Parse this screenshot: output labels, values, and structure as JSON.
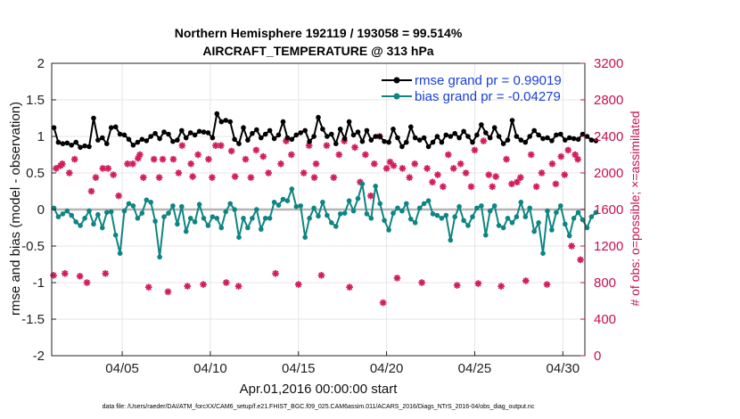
{
  "chart_data": {
    "type": "line",
    "title_line1": "Northern Hemisphere 192119 / 193058 = 99.514%",
    "title_line2": "AIRCRAFT_TEMPERATURE @ 313 hPa",
    "ylabel_left": "rmse and bias (model - observation)",
    "ylabel_right": "# of obs: o=possible; ×=assimilated",
    "xlabel": "Apr.01,2016 00:00:00 start",
    "footnote": "data file: /Users/raeder/DAI/ATM_forcXX/CAM6_setup/f.e21.FHIST_BGC.f09_025.CAM6assim.011/ACARS_2016/Diags_NTrS_2016-04/obs_diag_output.nc",
    "xlim": [
      1.0,
      31.25
    ],
    "ylim_left": [
      -2,
      2
    ],
    "ylim_right": [
      0,
      3200
    ],
    "xticks": [
      {
        "x": 5,
        "label": "04/05"
      },
      {
        "x": 10,
        "label": "04/10"
      },
      {
        "x": 15,
        "label": "04/15"
      },
      {
        "x": 20,
        "label": "04/20"
      },
      {
        "x": 25,
        "label": "04/25"
      },
      {
        "x": 30,
        "label": "04/30"
      }
    ],
    "yticks_left": [
      "2",
      "1.5",
      "1",
      "0.5",
      "0",
      "-0.5",
      "-1",
      "-1.5",
      "-2"
    ],
    "yticks_right": [
      "3200",
      "2800",
      "2400",
      "2000",
      "1600",
      "1200",
      "800",
      "400",
      "0"
    ],
    "x_start": 1.125,
    "x_step": 0.25,
    "series": [
      {
        "name": "rmse",
        "legend": "rmse grand pr = 0.99019",
        "color": "#000000",
        "axis": "left",
        "values": [
          1.12,
          0.92,
          0.9,
          0.91,
          0.88,
          0.92,
          0.85,
          0.87,
          0.86,
          1.25,
          0.95,
          0.98,
          0.9,
          1.12,
          1.13,
          1.03,
          1.02,
          0.96,
          0.88,
          0.92,
          0.96,
          0.94,
          1.0,
          1.04,
          0.97,
          1.06,
          1.03,
          0.93,
          0.95,
          1.08,
          0.98,
          1.05,
          1.02,
          1.07,
          1.06,
          1.05,
          0.98,
          1.31,
          1.2,
          1.22,
          1.2,
          0.96,
          0.9,
          1.12,
          0.95,
          1.04,
          1.09,
          0.98,
          1.03,
          1.08,
          0.97,
          1.02,
          1.2,
          0.98,
          0.96,
          1.02,
          1.05,
          1.08,
          0.93,
          1.0,
          1.26,
          1.1,
          1.0,
          1.03,
          0.9,
          1.1,
          0.97,
          1.2,
          1.02,
          1.06,
          0.93,
          1.08,
          0.95,
          1.0,
          1.0,
          0.93,
          0.92,
          1.1,
          0.98,
          0.86,
          0.92,
          1.13,
          0.98,
          0.95,
          0.98,
          0.86,
          0.92,
          1.0,
          0.92,
          1.02,
          1.0,
          1.04,
          0.98,
          1.07,
          1.0,
          0.92,
          1.02,
          1.16,
          1.05,
          0.98,
          1.12,
          1.0,
          0.9,
          0.95,
          1.22,
          1.0,
          0.95,
          0.92,
          1.0,
          1.08,
          1.02,
          0.97,
          0.98,
          0.94,
          1.02,
          1.03,
          0.95,
          0.98,
          0.97,
          0.96,
          1.03,
          1.0,
          0.95,
          0.94
        ]
      },
      {
        "name": "bias",
        "legend": "bias grand pr = -0.04279",
        "color": "#0e8582",
        "axis": "left",
        "values": [
          0.02,
          -0.1,
          -0.06,
          -0.02,
          -0.08,
          -0.17,
          -0.22,
          -0.12,
          -0.02,
          -0.2,
          -0.07,
          -0.25,
          -0.04,
          -0.03,
          -0.35,
          -0.6,
          -0.02,
          0.08,
          0.05,
          -0.12,
          -0.05,
          0.13,
          0.1,
          -0.16,
          -0.65,
          -0.1,
          -0.05,
          0.05,
          -0.2,
          0.04,
          -0.3,
          -0.12,
          -0.17,
          0.07,
          -0.12,
          -0.22,
          -0.1,
          -0.12,
          -0.25,
          -0.03,
          0.08,
          0.0,
          -0.38,
          -0.12,
          -0.25,
          -0.12,
          0.0,
          -0.27,
          -0.12,
          -0.12,
          0.1,
          0.06,
          0.14,
          0.12,
          0.28,
          0.04,
          0.05,
          -0.38,
          -0.12,
          0.02,
          -0.09,
          0.1,
          -0.08,
          -0.18,
          -0.23,
          -0.06,
          -0.05,
          0.12,
          -0.02,
          0.15,
          0.35,
          -0.06,
          -0.12,
          0.32,
          0.08,
          -0.15,
          -0.28,
          -0.05,
          0.02,
          -0.02,
          0.08,
          -0.13,
          -0.18,
          0.02,
          0.08,
          0.12,
          -0.06,
          -0.08,
          -0.12,
          -0.08,
          -0.42,
          -0.1,
          0.04,
          -0.15,
          -0.22,
          -0.1,
          0.02,
          0.05,
          -0.35,
          -0.02,
          0.05,
          -0.22,
          -0.25,
          -0.12,
          -0.18,
          -0.1,
          0.1,
          -0.1,
          0.02,
          -0.3,
          -0.18,
          -0.6,
          -0.02,
          -0.28,
          -0.04,
          0.05,
          -0.2,
          -0.36,
          -0.12,
          -0.04,
          -0.14,
          -0.25,
          -0.1,
          -0.04
        ]
      },
      {
        "name": "obs_assimilated",
        "legend": "",
        "color": "#d21e5b",
        "axis": "right",
        "x": [
          1.1,
          1.25,
          1.5,
          1.6,
          1.75,
          2.0,
          2.3,
          2.6,
          3.0,
          3.25,
          3.5,
          3.9,
          4.05,
          4.2,
          4.5,
          4.8,
          5.3,
          5.6,
          5.9,
          6.0,
          6.2,
          6.5,
          6.8,
          7.1,
          7.3,
          7.6,
          7.9,
          8.2,
          8.4,
          8.7,
          8.9,
          9.0,
          9.3,
          9.6,
          9.9,
          10.1,
          10.3,
          10.6,
          10.9,
          11.2,
          11.4,
          11.6,
          12.0,
          12.3,
          12.6,
          13.0,
          13.3,
          13.7,
          14.0,
          14.3,
          14.6,
          15.0,
          15.3,
          15.6,
          15.9,
          16.0,
          16.3,
          16.6,
          17.0,
          17.3,
          17.6,
          17.9,
          18.2,
          18.5,
          18.8,
          19.1,
          19.3,
          19.6,
          19.8,
          20.0,
          20.2,
          20.4,
          20.6,
          20.9,
          21.3,
          21.6,
          22.0,
          22.3,
          22.6,
          22.9,
          23.2,
          23.5,
          23.8,
          24.0,
          24.2,
          24.5,
          24.8,
          25.0,
          25.2,
          25.5,
          25.8,
          26.0,
          26.2,
          26.5,
          26.8,
          27.1,
          27.4,
          27.6,
          27.9,
          28.2,
          28.5,
          28.8,
          29.1,
          29.4,
          29.6,
          29.9,
          30.1,
          30.3,
          30.5,
          30.7,
          30.85,
          31.0
        ],
        "values": [
          880,
          2050,
          2080,
          2100,
          900,
          2000,
          2150,
          870,
          800,
          1800,
          1950,
          2050,
          900,
          2050,
          1980,
          1750,
          2100,
          2100,
          2160,
          2200,
          1950,
          750,
          2150,
          1950,
          2150,
          700,
          2150,
          2000,
          2300,
          760,
          2100,
          1960,
          2200,
          780,
          2150,
          1950,
          2300,
          2300,
          800,
          2240,
          1960,
          760,
          2150,
          1950,
          2250,
          2180,
          2000,
          900,
          2100,
          2350,
          2200,
          780,
          2000,
          2300,
          1950,
          2100,
          880,
          2300,
          1950,
          2200,
          2350,
          750,
          2280,
          1900,
          2200,
          1750,
          2100,
          2400,
          580,
          2050,
          2120,
          2080,
          850,
          2050,
          1950,
          2100,
          800,
          2050,
          1900,
          1980,
          1850,
          2200,
          2050,
          770,
          2100,
          2000,
          1850,
          2250,
          790,
          2350,
          1980,
          1850,
          1960,
          760,
          2150,
          1880,
          1900,
          1950,
          820,
          2200,
          1850,
          2000,
          780,
          2100,
          1880,
          2180,
          1980,
          2250,
          1200,
          2200,
          2150,
          1050
        ]
      }
    ]
  }
}
